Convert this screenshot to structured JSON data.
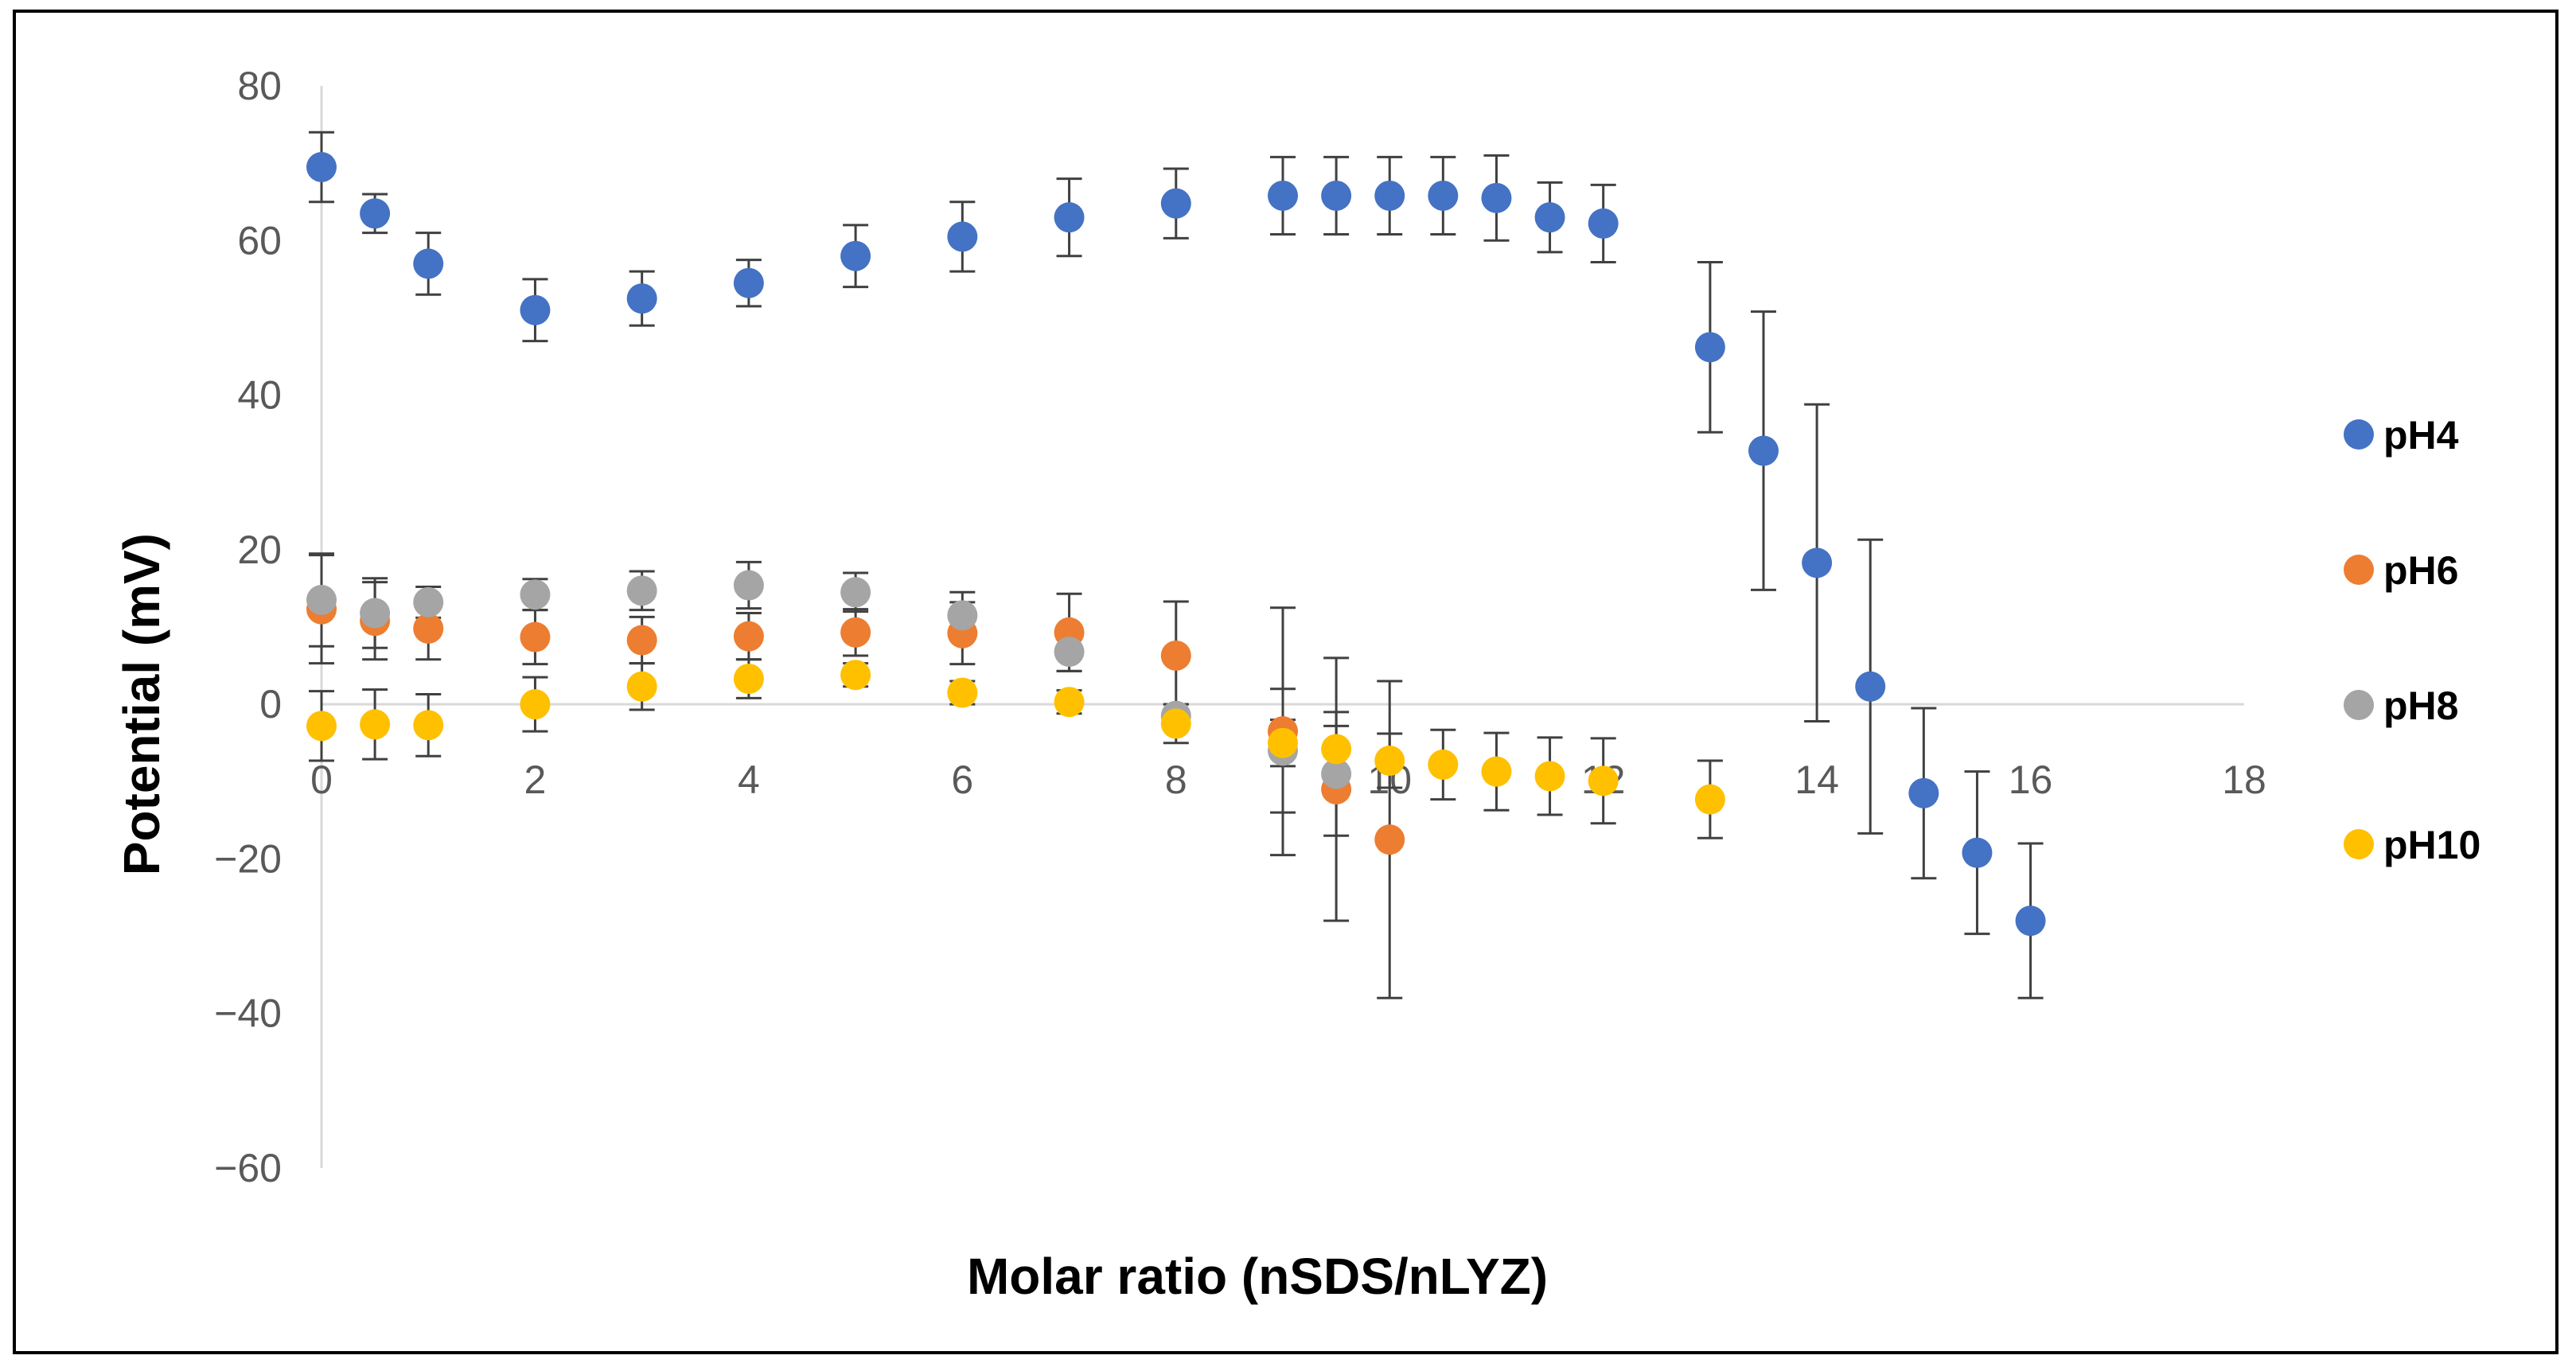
{
  "chart_data": {
    "type": "scatter",
    "title": "",
    "xlabel": "Molar ratio (nSDS/nLYZ)",
    "ylabel": "Potential (mV)",
    "xlim": [
      0,
      18
    ],
    "ylim": [
      -60,
      80
    ],
    "x_ticks": [
      0,
      2,
      4,
      6,
      8,
      10,
      12,
      14,
      16,
      18
    ],
    "y_ticks": [
      -60,
      -40,
      -20,
      0,
      20,
      40,
      60,
      80
    ],
    "grid": false,
    "legend_position": "right",
    "error_bars": true,
    "series": [
      {
        "name": "pH4",
        "color": "#4472C4",
        "points": [
          {
            "x": 0,
            "y": 69.5,
            "err": 4.5
          },
          {
            "x": 0.5,
            "y": 63.5,
            "err": 2.5
          },
          {
            "x": 1,
            "y": 57,
            "err": 4
          },
          {
            "x": 2,
            "y": 51,
            "err": 4
          },
          {
            "x": 3,
            "y": 52.5,
            "err": 3.5
          },
          {
            "x": 4,
            "y": 54.5,
            "err": 3
          },
          {
            "x": 5,
            "y": 58,
            "err": 4
          },
          {
            "x": 6,
            "y": 60.5,
            "err": 4.5
          },
          {
            "x": 7,
            "y": 63,
            "err": 5
          },
          {
            "x": 8,
            "y": 64.8,
            "err": 4.5
          },
          {
            "x": 9,
            "y": 65.8,
            "err": 5
          },
          {
            "x": 9.5,
            "y": 65.8,
            "err": 5
          },
          {
            "x": 10,
            "y": 65.8,
            "err": 5
          },
          {
            "x": 10.5,
            "y": 65.8,
            "err": 5
          },
          {
            "x": 11,
            "y": 65.5,
            "err": 5.5
          },
          {
            "x": 11.5,
            "y": 63,
            "err": 4.5
          },
          {
            "x": 12,
            "y": 62.2,
            "err": 5
          },
          {
            "x": 13,
            "y": 46.2,
            "err": 11
          },
          {
            "x": 13.5,
            "y": 32.8,
            "err": 18
          },
          {
            "x": 14,
            "y": 18.3,
            "err": 20.5
          },
          {
            "x": 14.5,
            "y": 2.3,
            "err": 19
          },
          {
            "x": 15,
            "y": -11.5,
            "err": 11
          },
          {
            "x": 15.5,
            "y": -19.2,
            "err": 10.5
          },
          {
            "x": 16,
            "y": -28,
            "err": 10
          }
        ]
      },
      {
        "name": "pH6",
        "color": "#ED7D31",
        "points": [
          {
            "x": 0,
            "y": 12.3,
            "err": 7
          },
          {
            "x": 0.5,
            "y": 10.8,
            "err": 5
          },
          {
            "x": 1,
            "y": 9.8,
            "err": 4
          },
          {
            "x": 2,
            "y": 8.7,
            "err": 3.5
          },
          {
            "x": 3,
            "y": 8.3,
            "err": 3
          },
          {
            "x": 4,
            "y": 8.8,
            "err": 3
          },
          {
            "x": 5,
            "y": 9.3,
            "err": 3
          },
          {
            "x": 6,
            "y": 9.2,
            "err": 4
          },
          {
            "x": 7,
            "y": 9.3,
            "err": 5
          },
          {
            "x": 8,
            "y": 6.3,
            "err": 7
          },
          {
            "x": 9,
            "y": -3.5,
            "err": 16
          },
          {
            "x": 9.5,
            "y": -11,
            "err": 17
          },
          {
            "x": 10,
            "y": -17.5,
            "err": 20.5
          }
        ]
      },
      {
        "name": "pH8",
        "color": "#A5A5A5",
        "points": [
          {
            "x": 0,
            "y": 13.5,
            "err": 6
          },
          {
            "x": 0.5,
            "y": 11.8,
            "err": 4.5
          },
          {
            "x": 1,
            "y": 13.2,
            "err": 2
          },
          {
            "x": 2,
            "y": 14.2,
            "err": 2
          },
          {
            "x": 3,
            "y": 14.7,
            "err": 2.5
          },
          {
            "x": 4,
            "y": 15.4,
            "err": 3
          },
          {
            "x": 5,
            "y": 14.5,
            "err": 2.5
          },
          {
            "x": 6,
            "y": 11.5,
            "err": 3
          },
          {
            "x": 7,
            "y": 6.8,
            "err": 2.5
          },
          {
            "x": 8,
            "y": -1.5,
            "err": 1.5
          },
          {
            "x": 9,
            "y": -6,
            "err": 8
          },
          {
            "x": 9.5,
            "y": -9,
            "err": 8
          }
        ]
      },
      {
        "name": "pH10",
        "color": "#FFC000",
        "points": [
          {
            "x": 0,
            "y": -2.8,
            "err": 4.5
          },
          {
            "x": 0.5,
            "y": -2.6,
            "err": 4.5
          },
          {
            "x": 1,
            "y": -2.7,
            "err": 4
          },
          {
            "x": 2,
            "y": 0,
            "err": 3.5
          },
          {
            "x": 3,
            "y": 2.3,
            "err": 3
          },
          {
            "x": 4,
            "y": 3.3,
            "err": 2.5
          },
          {
            "x": 5,
            "y": 3.8,
            "err": 1.5
          },
          {
            "x": 6,
            "y": 1.5,
            "err": 1.5
          },
          {
            "x": 7,
            "y": 0.3,
            "err": 1.5
          },
          {
            "x": 8,
            "y": -2.5,
            "err": 2.5
          },
          {
            "x": 9,
            "y": -5,
            "err": 3
          },
          {
            "x": 9.5,
            "y": -5.8,
            "err": 3
          },
          {
            "x": 10,
            "y": -7.3,
            "err": 3.5
          },
          {
            "x": 10.5,
            "y": -7.8,
            "err": 4.5
          },
          {
            "x": 11,
            "y": -8.7,
            "err": 5
          },
          {
            "x": 11.5,
            "y": -9.3,
            "err": 5
          },
          {
            "x": 12,
            "y": -9.9,
            "err": 5.5
          },
          {
            "x": 13,
            "y": -12.3,
            "err": 5
          }
        ]
      }
    ]
  }
}
